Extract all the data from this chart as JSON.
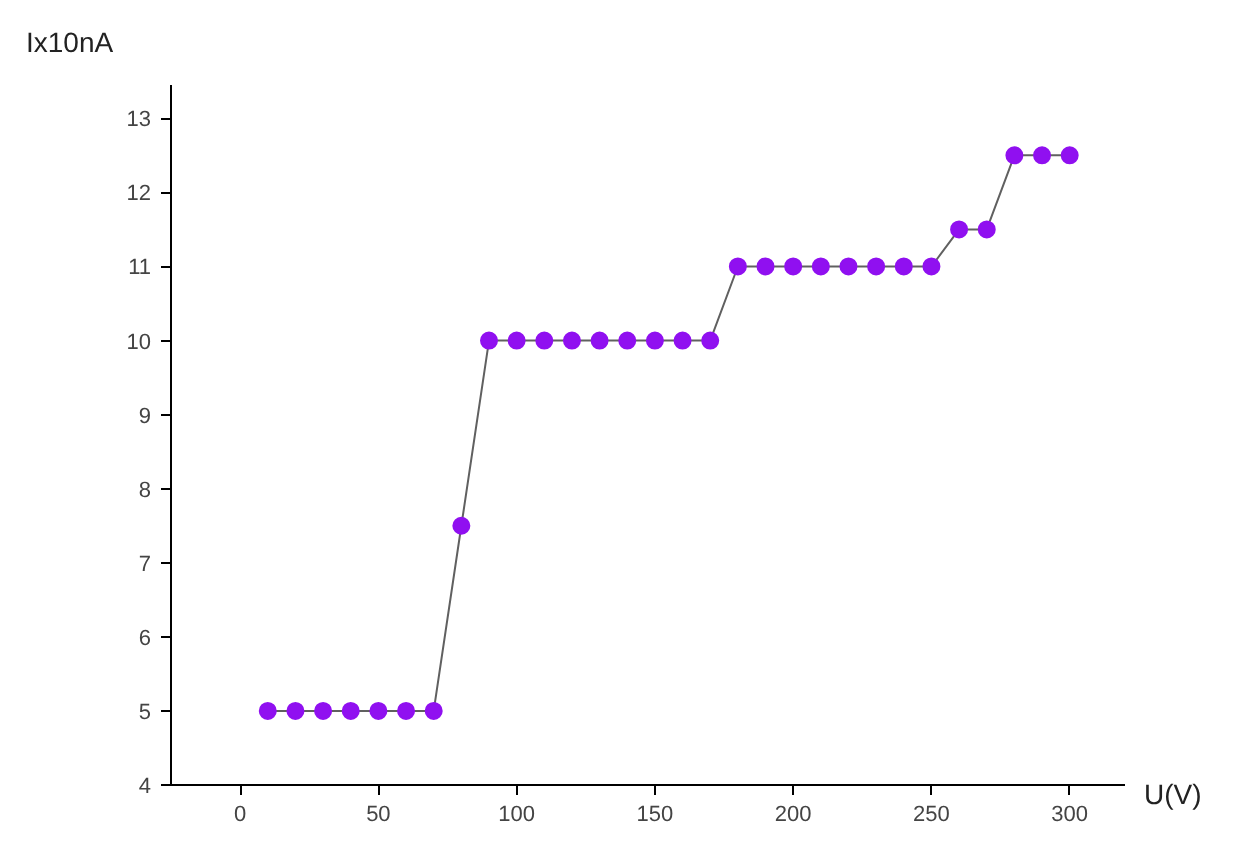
{
  "chart_data": {
    "type": "line",
    "xlabel": "U(V)",
    "ylabel": "Ix10nA",
    "x": [
      10,
      20,
      30,
      40,
      50,
      60,
      70,
      80,
      90,
      100,
      110,
      120,
      130,
      140,
      150,
      160,
      170,
      180,
      190,
      200,
      210,
      220,
      230,
      240,
      250,
      260,
      270,
      280,
      290,
      300
    ],
    "series": [
      {
        "color": "#9010f0",
        "values": [
          5,
          5,
          5,
          5,
          5,
          5,
          5,
          7.5,
          10,
          10,
          10,
          10,
          10,
          10,
          10,
          10,
          10,
          11,
          11,
          11,
          11,
          11,
          11,
          11,
          11,
          11.5,
          11.5,
          12.5,
          12.5,
          12.5
        ]
      }
    ],
    "marker": "circle",
    "grid": false,
    "xlim": [
      -25,
      320
    ],
    "ylim": [
      4,
      13.45
    ],
    "xticks": [
      0,
      50,
      100,
      150,
      200,
      250,
      300
    ],
    "yticks": [
      4,
      5,
      6,
      7,
      8,
      9,
      10,
      11,
      12,
      13
    ]
  }
}
